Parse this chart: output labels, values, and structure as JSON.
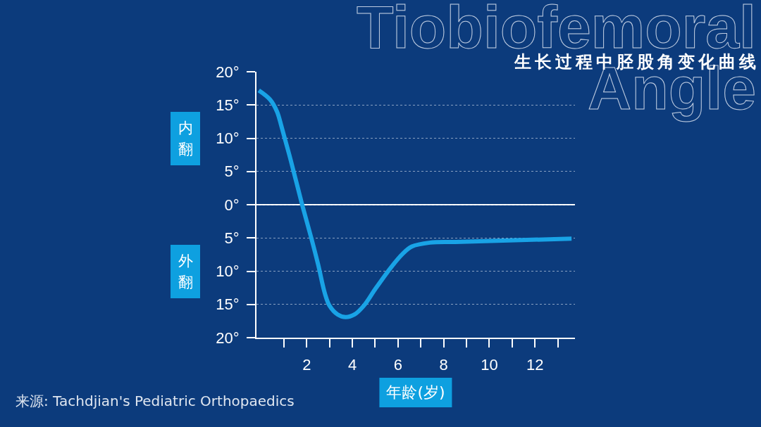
{
  "chart_data": {
    "type": "line",
    "title": "Tiobiofemoral Angle",
    "subtitle": "生长过程中胫股角变化曲线",
    "xlabel": "年龄(岁)",
    "x": [
      -0.1,
      0.4,
      0.7,
      0.9,
      1.3,
      1.8,
      2.2,
      2.5,
      2.8,
      3.0,
      3.35,
      3.7,
      4.1,
      4.5,
      5.0,
      5.7,
      6.2,
      6.6,
      7.4,
      8.5,
      10.6,
      13.6
    ],
    "series": [
      {
        "color": "#19a3e6",
        "values": [
          17.2,
          15.8,
          14.0,
          11.7,
          6.7,
          0,
          -5.0,
          -9.0,
          -13.4,
          -15.2,
          -16.5,
          -16.9,
          -16.5,
          -15.2,
          -12.7,
          -9.4,
          -7.4,
          -6.3,
          -5.7,
          -5.6,
          -5.4,
          -5.1
        ]
      }
    ],
    "xlim": [
      -0.2,
      13.75
    ],
    "xticks": [
      {
        "value": 1,
        "label": null
      },
      2,
      {
        "value": 3,
        "label": null
      },
      4,
      {
        "value": 5,
        "label": null
      },
      6,
      {
        "value": 7,
        "label": null
      },
      8,
      {
        "value": 9,
        "label": null
      },
      10,
      {
        "value": 11,
        "label": null
      },
      12,
      {
        "value": 13,
        "label": null
      }
    ],
    "ylim": [
      -20,
      20
    ],
    "yticks": [
      {
        "value": 20,
        "label": "20°"
      },
      {
        "value": 15,
        "label": "15°"
      },
      {
        "value": 10,
        "label": "10°"
      },
      {
        "value": 5,
        "label": "5°"
      },
      {
        "value": 0,
        "label": "0°"
      },
      {
        "value": -5,
        "label": "5°"
      },
      {
        "value": -10,
        "label": "10°"
      },
      {
        "value": -15,
        "label": "15°"
      },
      {
        "value": -20,
        "label": "20°"
      }
    ],
    "ref_lines": [
      {
        "axis": "y",
        "value": 0,
        "color": "#ffffff",
        "line_style": "solid"
      }
    ],
    "annotations": [
      "内翻",
      "外翻",
      "来源: Tachdjian's Pediatric Orthopaedics"
    ],
    "grid": "y",
    "marker": "none",
    "line_style": "solid"
  }
}
